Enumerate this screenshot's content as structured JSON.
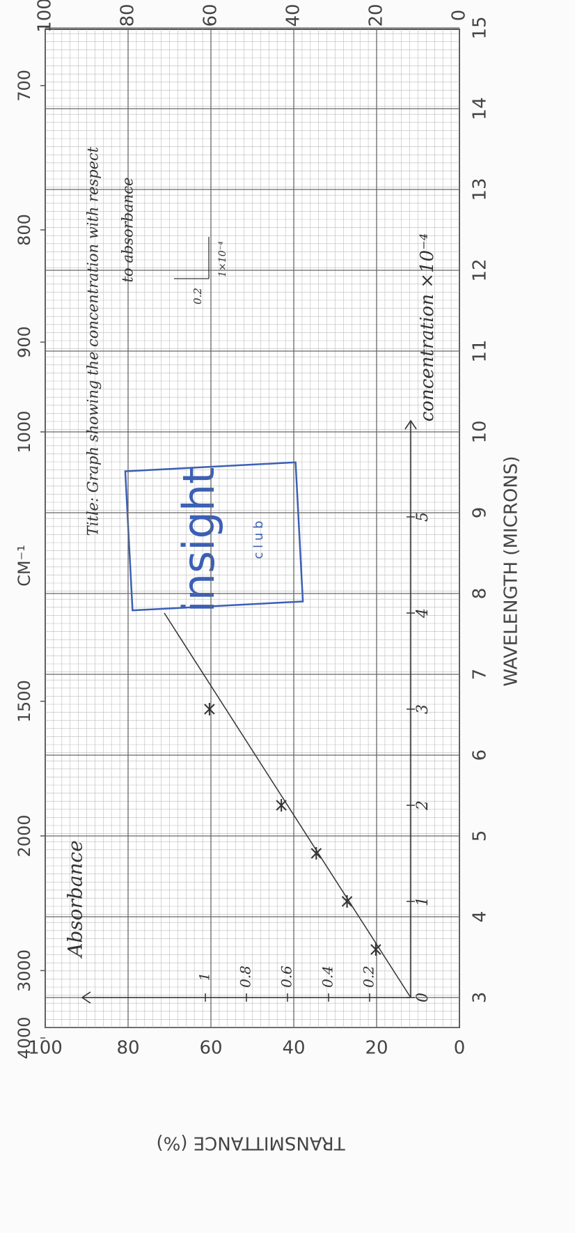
{
  "graph_paper": {
    "transmittance_label": "TRANSMITTANCE (%)",
    "transmittance_ticks": [
      100,
      80,
      60,
      40,
      20,
      0
    ],
    "wavelength_label": "WAVELENGTH (MICRONS)",
    "wavelength_ticks": [
      3,
      4,
      5,
      6,
      7,
      8,
      9,
      10,
      11,
      12,
      13,
      14,
      15
    ],
    "wavenumber_label": "CM⁻¹",
    "wavenumber_ticks": [
      4000,
      3000,
      2000,
      1500,
      1000,
      900,
      800,
      700
    ]
  },
  "stamp": {
    "text": "insight",
    "sub": "c l u b"
  },
  "chart_data": {
    "type": "scatter",
    "title": "Title: Graph showing the concentration with respect",
    "title_2": "to absorbance",
    "y_label": "Absorbance",
    "x_label": "concentration ×10⁻⁴",
    "x": [
      0.5,
      1,
      1.5,
      2,
      3
    ],
    "values": [
      0.17,
      0.31,
      0.46,
      0.63,
      0.98
    ],
    "color": "#333333",
    "trend_x": [
      0,
      4
    ],
    "trend_values": [
      0,
      1.2
    ],
    "xlim": [
      0,
      6
    ],
    "ylim": [
      0,
      1.6
    ],
    "xticks": [
      0,
      1,
      2,
      3,
      4,
      5
    ],
    "yticks": [
      0.2,
      0.4,
      0.6,
      0.8,
      1
    ],
    "scale_key": {
      "y": "0.2",
      "x": "1×10⁻⁴"
    }
  }
}
